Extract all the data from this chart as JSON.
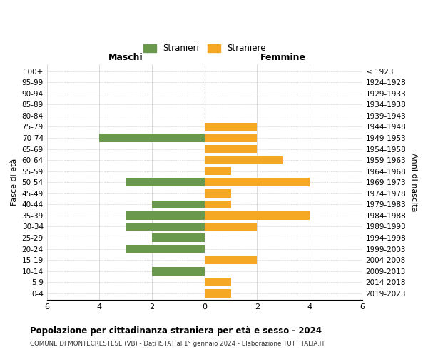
{
  "age_groups": [
    "0-4",
    "5-9",
    "10-14",
    "15-19",
    "20-24",
    "25-29",
    "30-34",
    "35-39",
    "40-44",
    "45-49",
    "50-54",
    "55-59",
    "60-64",
    "65-69",
    "70-74",
    "75-79",
    "80-84",
    "85-89",
    "90-94",
    "95-99",
    "100+"
  ],
  "birth_years": [
    "2019-2023",
    "2014-2018",
    "2009-2013",
    "2004-2008",
    "1999-2003",
    "1994-1998",
    "1989-1993",
    "1984-1988",
    "1979-1983",
    "1974-1978",
    "1969-1973",
    "1964-1968",
    "1959-1963",
    "1954-1958",
    "1949-1953",
    "1944-1948",
    "1939-1943",
    "1934-1938",
    "1929-1933",
    "1924-1928",
    "≤ 1923"
  ],
  "maschi": [
    0,
    0,
    2,
    0,
    3,
    2,
    3,
    3,
    2,
    0,
    3,
    0,
    0,
    0,
    4,
    0,
    0,
    0,
    0,
    0,
    0
  ],
  "femmine": [
    1,
    1,
    0,
    2,
    0,
    0,
    2,
    4,
    1,
    1,
    4,
    1,
    3,
    2,
    2,
    2,
    0,
    0,
    0,
    0,
    0
  ],
  "color_maschi": "#6a994e",
  "color_femmine": "#f4a823",
  "title": "Popolazione per cittadinanza straniera per età e sesso - 2024",
  "subtitle": "COMUNE DI MONTECRESTESE (VB) - Dati ISTAT al 1° gennaio 2024 - Elaborazione TUTTITALIA.IT",
  "label_maschi": "Maschi",
  "label_femmine": "Femmine",
  "ylabel_left": "Fasce di età",
  "ylabel_right": "Anni di nascita",
  "legend_maschi": "Stranieri",
  "legend_femmine": "Straniere",
  "xlim": 6,
  "background_color": "#ffffff",
  "grid_color": "#cccccc"
}
